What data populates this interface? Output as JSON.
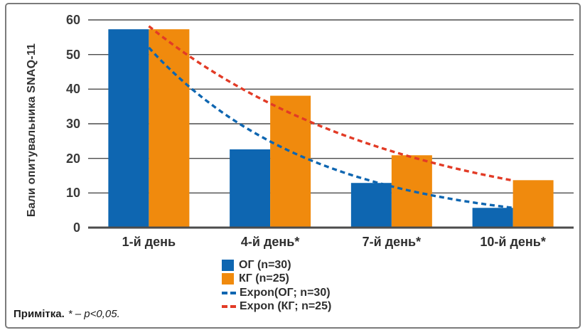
{
  "chart_data": {
    "type": "bar",
    "ylabel": "Бали опитувальника SNAQ-11",
    "xlabel": "",
    "ylim": [
      0,
      60
    ],
    "yticks": [
      0,
      10,
      20,
      30,
      40,
      50,
      60
    ],
    "grid": true,
    "legend_position": "bottom",
    "categories": [
      "1-й день",
      "4-й день*",
      "7-й день*",
      "10-й день*"
    ],
    "series": [
      {
        "name": "ОГ (n=30)",
        "color": "#0E66B1",
        "values": [
          57.3,
          22.6,
          12.9,
          5.7
        ]
      },
      {
        "name": "КГ (n=25)",
        "color": "#F08A0D",
        "values": [
          57.3,
          38.1,
          20.9,
          13.7
        ]
      }
    ],
    "trendlines": [
      {
        "name": "Expon(ОГ; n=30)",
        "color": "#0E66B1",
        "kind": "exponential",
        "from_value": 52.0,
        "to_value": 5.7
      },
      {
        "name": "Expon (КГ; n=25)",
        "color": "#E23B26",
        "kind": "exponential",
        "from_value": 58.2,
        "to_value": 13.6
      }
    ],
    "grid_color": "#4C4C4C",
    "axis_color": "#4C4C4C"
  },
  "note": {
    "prefix": "Примітка.",
    "body": "* – p<0,05."
  }
}
